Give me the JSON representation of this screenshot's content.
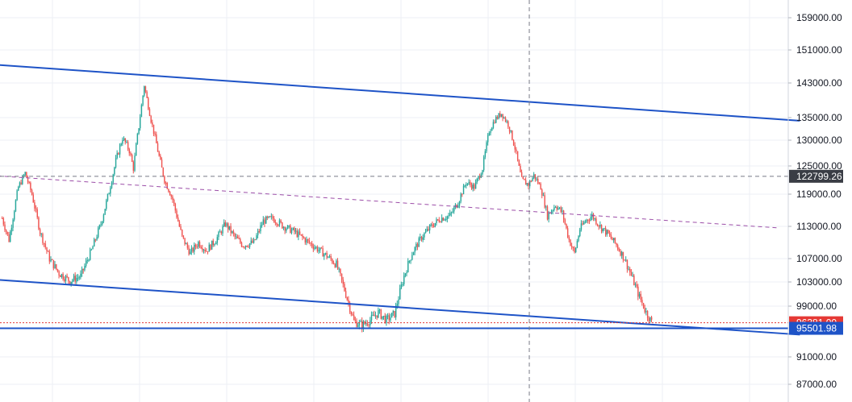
{
  "chart_data": {
    "type": "candlestick",
    "y_axis": {
      "tick_labels": [
        "159000.00",
        "151000.00",
        "143000.00",
        "135000.00",
        "130000.00",
        "125000.00",
        "119000.00",
        "113000.00",
        "107000.00",
        "103000.00",
        "99000.00",
        "91000.00",
        "87000.00"
      ],
      "ticks": [
        159000,
        151000,
        143000,
        135000,
        130000,
        125000,
        119000,
        113000,
        107000,
        103000,
        99000,
        91000,
        87000
      ],
      "scale": "irregular-tick"
    },
    "grid": true,
    "colors": {
      "up": "#26a69a",
      "down": "#ef5350",
      "channel_line": "#1e53c7",
      "mid_line": "#9c4ea8",
      "price_line": "#e53935",
      "level_line": "#1e53c7",
      "crosshair": "#787b86",
      "grid": "#eceff4",
      "axis_text": "#131722"
    },
    "price_badges": [
      {
        "label": "122799.26",
        "price": 122799.26,
        "bg": "#3a3d45",
        "fg": "#ffffff"
      },
      {
        "label": "96381.00",
        "price": 96381.0,
        "bg": "#e53935",
        "fg": "#ffffff"
      },
      {
        "label": "95501.98",
        "price": 95501.98,
        "bg": "#1e53c7",
        "fg": "#ffffff"
      }
    ],
    "anchors": [
      {
        "i": 0,
        "p": 114500
      },
      {
        "i": 5,
        "p": 110500
      },
      {
        "i": 12,
        "p": 120500
      },
      {
        "i": 17,
        "p": 123500
      },
      {
        "i": 22,
        "p": 119000
      },
      {
        "i": 28,
        "p": 112000
      },
      {
        "i": 35,
        "p": 107000
      },
      {
        "i": 42,
        "p": 104500
      },
      {
        "i": 50,
        "p": 103200
      },
      {
        "i": 58,
        "p": 104000
      },
      {
        "i": 66,
        "p": 108500
      },
      {
        "i": 73,
        "p": 113500
      },
      {
        "i": 79,
        "p": 119500
      },
      {
        "i": 84,
        "p": 126000
      },
      {
        "i": 89,
        "p": 130500
      },
      {
        "i": 94,
        "p": 128000
      },
      {
        "i": 97,
        "p": 124500
      },
      {
        "i": 101,
        "p": 133000
      },
      {
        "i": 105,
        "p": 142500
      },
      {
        "i": 110,
        "p": 134500
      },
      {
        "i": 115,
        "p": 128000
      },
      {
        "i": 120,
        "p": 122000
      },
      {
        "i": 126,
        "p": 118000
      },
      {
        "i": 133,
        "p": 111000
      },
      {
        "i": 139,
        "p": 108000
      },
      {
        "i": 145,
        "p": 110000
      },
      {
        "i": 151,
        "p": 108500
      },
      {
        "i": 158,
        "p": 110500
      },
      {
        "i": 165,
        "p": 113500
      },
      {
        "i": 172,
        "p": 111000
      },
      {
        "i": 178,
        "p": 109500
      },
      {
        "i": 186,
        "p": 110000
      },
      {
        "i": 193,
        "p": 114000
      },
      {
        "i": 200,
        "p": 114500
      },
      {
        "i": 208,
        "p": 113000
      },
      {
        "i": 216,
        "p": 112000
      },
      {
        "i": 224,
        "p": 110500
      },
      {
        "i": 232,
        "p": 109000
      },
      {
        "i": 240,
        "p": 107500
      },
      {
        "i": 247,
        "p": 106000
      },
      {
        "i": 254,
        "p": 101000
      },
      {
        "i": 260,
        "p": 96600
      },
      {
        "i": 266,
        "p": 96000
      },
      {
        "i": 272,
        "p": 96800
      },
      {
        "i": 278,
        "p": 98000
      },
      {
        "i": 284,
        "p": 96800
      },
      {
        "i": 290,
        "p": 97800
      },
      {
        "i": 297,
        "p": 104000
      },
      {
        "i": 303,
        "p": 108000
      },
      {
        "i": 310,
        "p": 111000
      },
      {
        "i": 317,
        "p": 113000
      },
      {
        "i": 324,
        "p": 114500
      },
      {
        "i": 331,
        "p": 115000
      },
      {
        "i": 337,
        "p": 117500
      },
      {
        "i": 343,
        "p": 121500
      },
      {
        "i": 349,
        "p": 120500
      },
      {
        "i": 355,
        "p": 124500
      },
      {
        "i": 360,
        "p": 132000
      },
      {
        "i": 364,
        "p": 134500
      },
      {
        "i": 369,
        "p": 136000
      },
      {
        "i": 374,
        "p": 133500
      },
      {
        "i": 379,
        "p": 128500
      },
      {
        "i": 384,
        "p": 122000
      },
      {
        "i": 389,
        "p": 121000
      },
      {
        "i": 393,
        "p": 123000
      },
      {
        "i": 398,
        "p": 120500
      },
      {
        "i": 403,
        "p": 115000
      },
      {
        "i": 409,
        "p": 117000
      },
      {
        "i": 414,
        "p": 115500
      },
      {
        "i": 419,
        "p": 110500
      },
      {
        "i": 423,
        "p": 108000
      },
      {
        "i": 427,
        "p": 112500
      },
      {
        "i": 431,
        "p": 114000
      },
      {
        "i": 436,
        "p": 115000
      },
      {
        "i": 442,
        "p": 113000
      },
      {
        "i": 448,
        "p": 111500
      },
      {
        "i": 454,
        "p": 109500
      },
      {
        "i": 460,
        "p": 107000
      },
      {
        "i": 466,
        "p": 103500
      },
      {
        "i": 471,
        "p": 100500
      },
      {
        "i": 476,
        "p": 98000
      },
      {
        "i": 480,
        "p": 96500
      }
    ],
    "candle_count": 481,
    "trend_lines": [
      {
        "name": "upper-channel",
        "from": {
          "i": -30,
          "p": 148000
        },
        "to": {
          "i": 590,
          "p": 134300
        }
      },
      {
        "name": "lower-channel",
        "from": {
          "i": -30,
          "p": 103800
        },
        "to": {
          "i": 590,
          "p": 94500
        }
      },
      {
        "name": "mid-dashed",
        "from": {
          "i": -30,
          "p": 123400
        },
        "to": {
          "i": 575,
          "p": 112700
        }
      }
    ],
    "horizontal_levels": [
      {
        "name": "price-line",
        "price": 96381.0
      },
      {
        "name": "support-level",
        "price": 95501.98
      },
      {
        "name": "crosshair-h",
        "price": 122799.26
      }
    ],
    "crosshair_candle_index": 390
  }
}
